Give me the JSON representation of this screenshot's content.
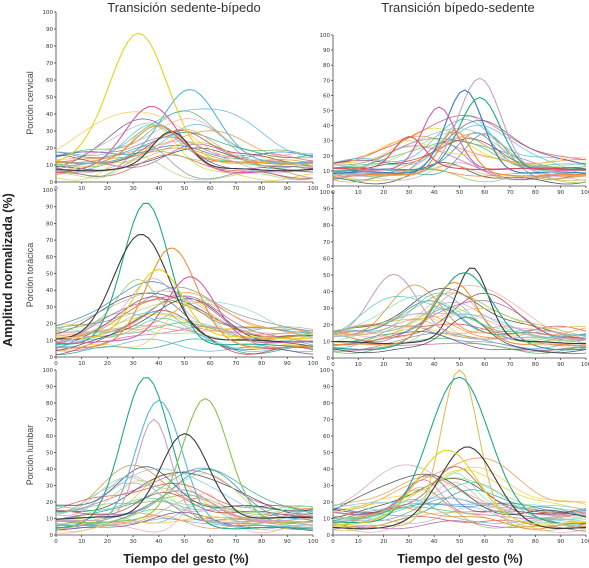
{
  "figure": {
    "ylabel": "Amplitud normalizada (%)",
    "xlabel": "Tiempo del gesto (%)",
    "col_titles": [
      "Transición sedente-bípedo",
      "Transición bípedo-sedente"
    ],
    "row_labels": [
      "Porción cervical",
      "Porción torácica",
      "Porción lumbar"
    ]
  },
  "palette": [
    "#e6d21c",
    "#58b8e0",
    "#cf5fa8",
    "#ef8e3a",
    "#56b55c",
    "#3a3a3a",
    "#9b59b6",
    "#e34a4a",
    "#2a7fc1",
    "#8bc34a",
    "#c8a2c8",
    "#f4a6a6",
    "#1fa88a",
    "#d4c35a",
    "#7f8c8d",
    "#e67e22",
    "#5dade2",
    "#a3d977",
    "#b03a2e",
    "#76448a",
    "#f7c948",
    "#48c9b0",
    "#eb984e",
    "#aab7b8",
    "#2e4053",
    "#f1948a",
    "#82e0aa",
    "#85c1e9",
    "#d7bde2",
    "#abebc6"
  ],
  "chart_data": [
    {
      "type": "line",
      "panel": "Porción cervical · Transición sedente-bípedo",
      "xlim": [
        0,
        100
      ],
      "ylim": [
        0,
        100
      ],
      "xticks": [
        0,
        10,
        20,
        30,
        40,
        50,
        60,
        70,
        80,
        90,
        100
      ],
      "yticks": [
        0,
        10,
        20,
        30,
        40,
        50,
        60,
        70,
        80,
        90,
        100
      ],
      "grid": false,
      "n_background_series": 24,
      "highlighted_series": [
        {
          "color": "#e6d21c",
          "peak_x": 32,
          "peak_y": 88
        },
        {
          "color": "#58b8e0",
          "peak_x": 52,
          "peak_y": 55
        },
        {
          "color": "#cf5fa8",
          "peak_x": 37,
          "peak_y": 45
        },
        {
          "color": "#3a3a3a",
          "peak_x": 45,
          "peak_y": 30
        },
        {
          "color": "#ef8e3a",
          "peak_x": 40,
          "peak_y": 33
        }
      ]
    },
    {
      "type": "line",
      "panel": "Porción cervical · Transición bípedo-sedente",
      "xlim": [
        0,
        100
      ],
      "ylim": [
        0,
        100
      ],
      "xticks": [
        0,
        10,
        20,
        30,
        40,
        50,
        60,
        70,
        80,
        90,
        100
      ],
      "yticks": [
        0,
        10,
        20,
        30,
        40,
        50,
        60,
        70,
        80,
        90,
        100
      ],
      "grid": false,
      "n_background_series": 24,
      "highlighted_series": [
        {
          "color": "#c8a2c8",
          "peak_x": 58,
          "peak_y": 72
        },
        {
          "color": "#2a7fc1",
          "peak_x": 52,
          "peak_y": 63
        },
        {
          "color": "#1fa88a",
          "peak_x": 58,
          "peak_y": 58
        },
        {
          "color": "#cf5fa8",
          "peak_x": 42,
          "peak_y": 52
        },
        {
          "color": "#e34a4a",
          "peak_x": 30,
          "peak_y": 33
        },
        {
          "color": "#ef8e3a",
          "peak_x": 48,
          "peak_y": 37
        }
      ]
    },
    {
      "type": "line",
      "panel": "Porción torácica · Transición sedente-bípedo",
      "xlim": [
        0,
        100
      ],
      "ylim": [
        0,
        100
      ],
      "xticks": [
        0,
        10,
        20,
        30,
        40,
        50,
        60,
        70,
        80,
        90,
        100
      ],
      "yticks": [
        0,
        10,
        20,
        30,
        40,
        50,
        60,
        70,
        80,
        90,
        100
      ],
      "grid": false,
      "n_background_series": 28,
      "highlighted_series": [
        {
          "color": "#1fa88a",
          "peak_x": 35,
          "peak_y": 92
        },
        {
          "color": "#3a3a3a",
          "peak_x": 33,
          "peak_y": 73
        },
        {
          "color": "#ef8e3a",
          "peak_x": 45,
          "peak_y": 66
        },
        {
          "color": "#e6d21c",
          "peak_x": 40,
          "peak_y": 52
        },
        {
          "color": "#cf5fa8",
          "peak_x": 52,
          "peak_y": 48
        }
      ]
    },
    {
      "type": "line",
      "panel": "Porción torácica · Transición bípedo-sedente",
      "xlim": [
        0,
        100
      ],
      "ylim": [
        0,
        100
      ],
      "xticks": [
        0,
        10,
        20,
        30,
        40,
        50,
        60,
        70,
        80,
        90,
        100
      ],
      "yticks": [
        0,
        10,
        20,
        30,
        40,
        50,
        60,
        70,
        80,
        90,
        100
      ],
      "grid": false,
      "n_background_series": 28,
      "highlighted_series": [
        {
          "color": "#3a3a3a",
          "peak_x": 55,
          "peak_y": 55
        },
        {
          "color": "#1fa88a",
          "peak_x": 52,
          "peak_y": 52
        },
        {
          "color": "#c8a2c8",
          "peak_x": 24,
          "peak_y": 51
        },
        {
          "color": "#ef8e3a",
          "peak_x": 48,
          "peak_y": 45
        }
      ]
    },
    {
      "type": "line",
      "panel": "Porción lumbar · Transición sedente-bípedo",
      "xlim": [
        0,
        100
      ],
      "ylim": [
        0,
        100
      ],
      "xticks": [
        0,
        10,
        20,
        30,
        40,
        50,
        60,
        70,
        80,
        90,
        100
      ],
      "yticks": [
        0,
        10,
        20,
        30,
        40,
        50,
        60,
        70,
        80,
        90,
        100
      ],
      "grid": false,
      "n_background_series": 28,
      "highlighted_series": [
        {
          "color": "#1fa88a",
          "peak_x": 35,
          "peak_y": 96
        },
        {
          "color": "#8bc34a",
          "peak_x": 58,
          "peak_y": 83
        },
        {
          "color": "#58b8e0",
          "peak_x": 40,
          "peak_y": 81
        },
        {
          "color": "#c8a2c8",
          "peak_x": 38,
          "peak_y": 70
        },
        {
          "color": "#3a3a3a",
          "peak_x": 50,
          "peak_y": 61
        }
      ]
    },
    {
      "type": "line",
      "panel": "Porción lumbar · Transición bípedo-sedente",
      "xlim": [
        0,
        100
      ],
      "ylim": [
        0,
        100
      ],
      "xticks": [
        0,
        10,
        20,
        30,
        40,
        50,
        60,
        70,
        80,
        90,
        100
      ],
      "yticks": [
        0,
        10,
        20,
        30,
        40,
        50,
        60,
        70,
        80,
        90,
        100
      ],
      "grid": false,
      "n_background_series": 28,
      "highlighted_series": [
        {
          "color": "#d4c35a",
          "peak_x": 50,
          "peak_y": 100
        },
        {
          "color": "#1fa88a",
          "peak_x": 50,
          "peak_y": 96
        },
        {
          "color": "#3a3a3a",
          "peak_x": 53,
          "peak_y": 54
        },
        {
          "color": "#e6d21c",
          "peak_x": 45,
          "peak_y": 52
        }
      ]
    }
  ]
}
